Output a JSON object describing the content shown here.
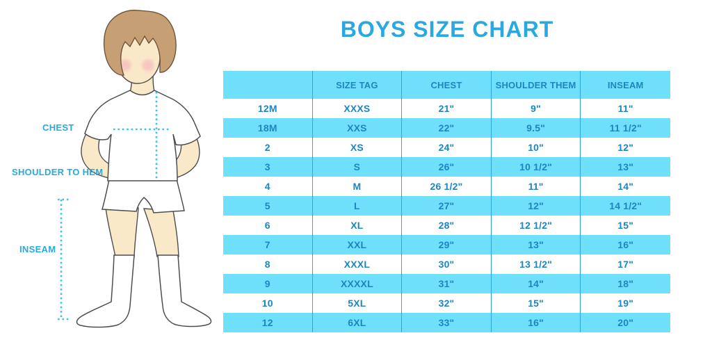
{
  "title": "BOYS SIZE CHART",
  "figure": {
    "labels": {
      "chest": "CHEST",
      "shoulder_to_hem": "SHOULDER TO HEM",
      "inseam": "INSEAM"
    },
    "illustration": "boy in white t-shirt, white shorts and knee socks with dotted measurement lines"
  },
  "colors": {
    "title_blue": "#29A9E0",
    "label_blue": "#29A9E0",
    "table_row_blue": "#6FE0FB",
    "table_text_blue": "#1E85BE",
    "table_divider_blue": "#2AA7DC",
    "measure_line_blue": "#3BC4F2",
    "skin": "#FAE9C8",
    "hair_brown": "#C6A074",
    "blush_pink": "#F2A9B9",
    "outline_gray": "#4D4D4D"
  },
  "table": {
    "columns": [
      "",
      "SIZE TAG",
      "CHEST",
      "SHOULDER THEM",
      "INSEAM"
    ],
    "rows": [
      [
        "12M",
        "XXXS",
        "21\"",
        "9\"",
        "11\""
      ],
      [
        "18M",
        "XXS",
        "22\"",
        "9.5\"",
        "11 1/2\""
      ],
      [
        "2",
        "XS",
        "24\"",
        "10\"",
        "12\""
      ],
      [
        "3",
        "S",
        "26\"",
        "10 1/2\"",
        "13\""
      ],
      [
        "4",
        "M",
        "26 1/2\"",
        "11\"",
        "14\""
      ],
      [
        "5",
        "L",
        "27\"",
        "12\"",
        "14 1/2\""
      ],
      [
        "6",
        "XL",
        "28\"",
        "12 1/2\"",
        "15\""
      ],
      [
        "7",
        "XXL",
        "29\"",
        "13\"",
        "16\""
      ],
      [
        "8",
        "XXXL",
        "30\"",
        "13 1/2\"",
        "17\""
      ],
      [
        "9",
        "XXXXL",
        "31\"",
        "14\"",
        "18\""
      ],
      [
        "10",
        "5XL",
        "32\"",
        "15\"",
        "19\""
      ],
      [
        "12",
        "6XL",
        "33\"",
        "16\"",
        "20\""
      ]
    ]
  }
}
